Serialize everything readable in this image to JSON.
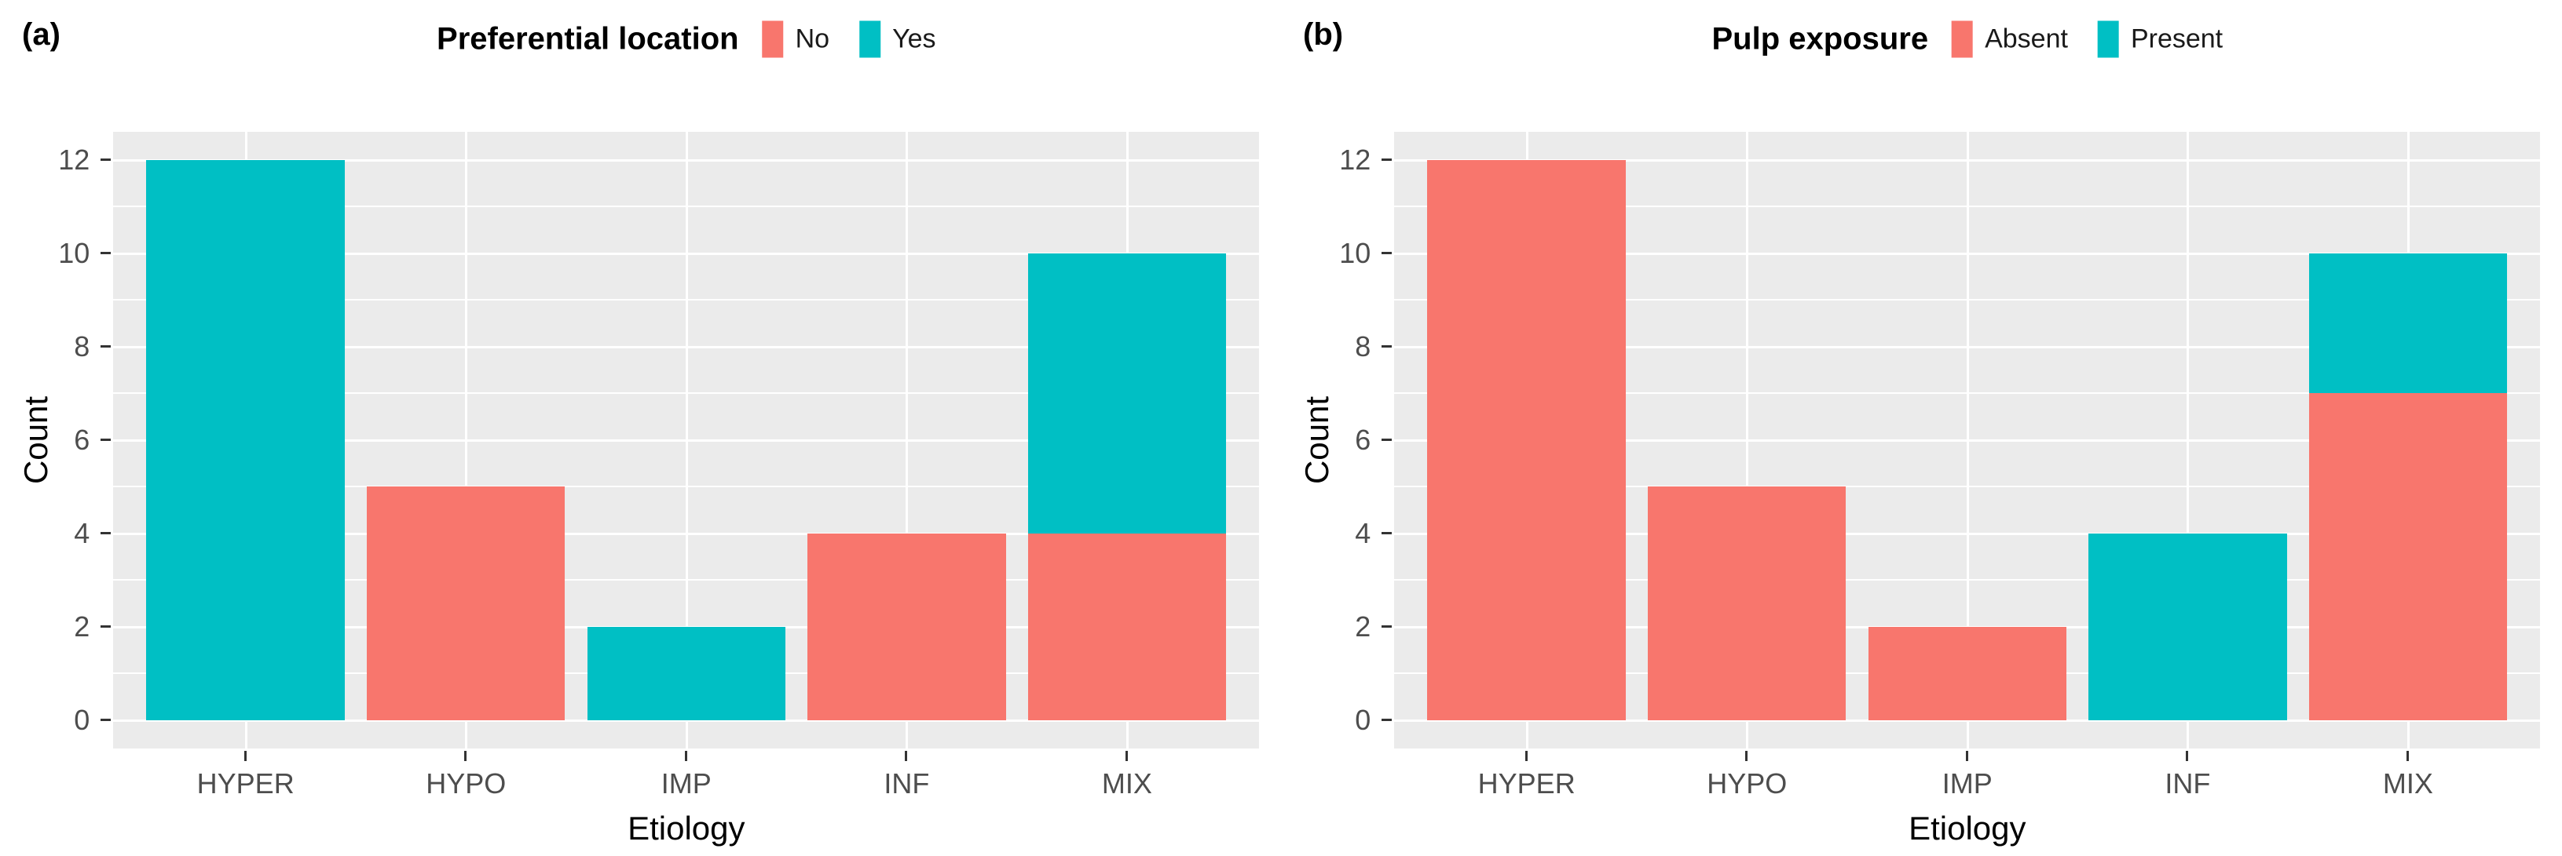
{
  "figure": {
    "background": "#ffffff",
    "panel_background": "#ebebeb",
    "grid_color": "#ffffff",
    "tick_color": "#333333",
    "tick_label_color": "#4d4d4d",
    "axis_title_color": "#000000",
    "accent_red": "#F8766D",
    "accent_teal": "#00BFC4"
  },
  "chart_data": [
    {
      "type": "bar",
      "subtype": "stacked",
      "panel_label": "(a)",
      "legend_title": "Preferential location",
      "legend_position": "top",
      "legend_entries": [
        {
          "label": "No",
          "color": "#F8766D"
        },
        {
          "label": "Yes",
          "color": "#00BFC4"
        }
      ],
      "categories": [
        "HYPER",
        "HYPO",
        "IMP",
        "INF",
        "MIX"
      ],
      "series": [
        {
          "name": "No",
          "color": "#F8766D",
          "values": [
            0,
            5,
            0,
            4,
            4
          ]
        },
        {
          "name": "Yes",
          "color": "#00BFC4",
          "values": [
            12,
            0,
            2,
            0,
            6
          ]
        }
      ],
      "xlabel": "Etiology",
      "ylabel": "Count",
      "ylim": [
        0,
        12
      ],
      "yticks": [
        0,
        2,
        4,
        6,
        8,
        10,
        12
      ],
      "grid": true
    },
    {
      "type": "bar",
      "subtype": "stacked",
      "panel_label": "(b)",
      "legend_title": "Pulp exposure",
      "legend_position": "top",
      "legend_entries": [
        {
          "label": "Absent",
          "color": "#F8766D"
        },
        {
          "label": "Present",
          "color": "#00BFC4"
        }
      ],
      "categories": [
        "HYPER",
        "HYPO",
        "IMP",
        "INF",
        "MIX"
      ],
      "series": [
        {
          "name": "Absent",
          "color": "#F8766D",
          "values": [
            12,
            5,
            2,
            0,
            7
          ]
        },
        {
          "name": "Present",
          "color": "#00BFC4",
          "values": [
            0,
            0,
            0,
            4,
            3
          ]
        }
      ],
      "xlabel": "Etiology",
      "ylabel": "Count",
      "ylim": [
        0,
        12
      ],
      "yticks": [
        0,
        2,
        4,
        6,
        8,
        10,
        12
      ],
      "grid": true
    }
  ]
}
